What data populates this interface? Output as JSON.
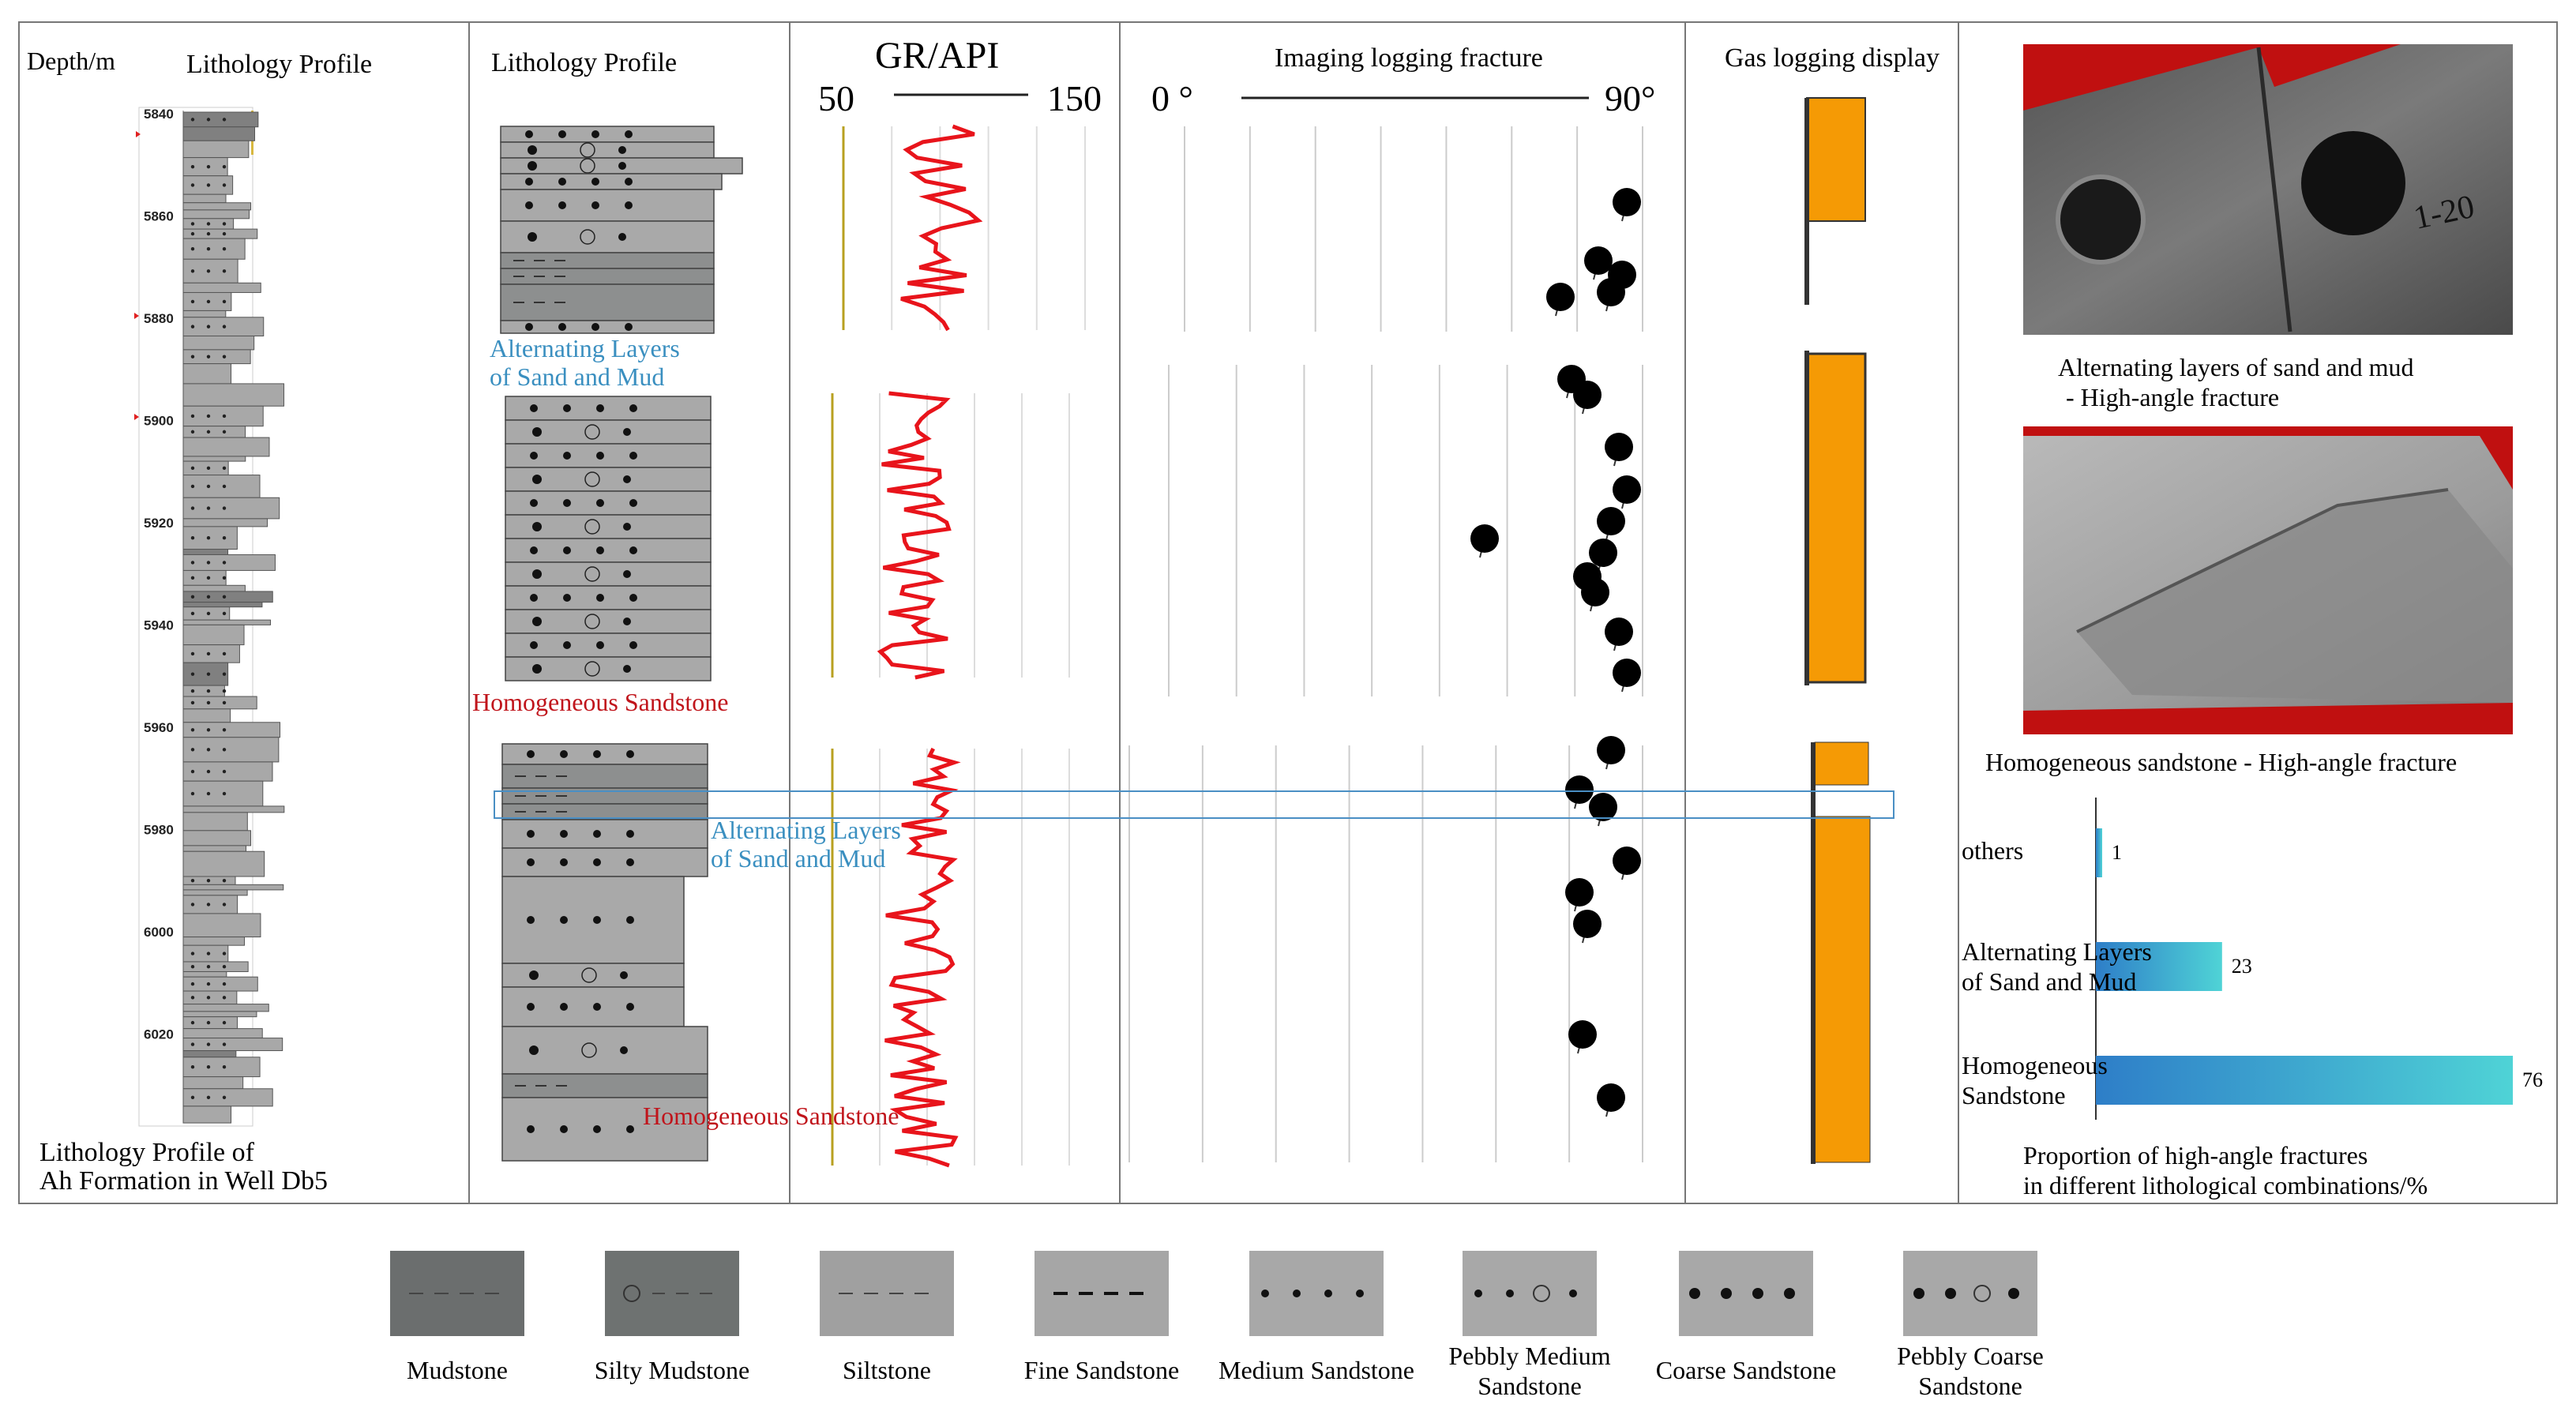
{
  "columns": {
    "depth_header": "Depth/m",
    "lith_header_1": "Lithology Profile",
    "lith_header_2": "Lithology Profile",
    "gr_header": "GR/API",
    "gr_min": "50",
    "gr_max": "150",
    "imaging_header": "Imaging logging fracture",
    "imaging_min": "0 °",
    "imaging_max": "90°",
    "gas_header": "Gas logging display"
  },
  "depth_ticks": [
    "5840",
    "5860",
    "5880",
    "5900",
    "5920",
    "5940",
    "5960",
    "5980",
    "6000",
    "6020"
  ],
  "profile_caption_1": "Lithology Profile of",
  "profile_caption_2": "Ah Formation in Well Db5",
  "segment_labels": {
    "seg1": [
      "Alternating Layers",
      "of Sand and Mud"
    ],
    "seg2": "Homogeneous Sandstone",
    "seg3": [
      "Alternating Layers",
      "of Sand and Mud"
    ],
    "seg4": "Homogeneous Sandstone"
  },
  "photos": [
    {
      "caption_1": "Alternating layers of sand and mud",
      "caption_2": "- High-angle fracture",
      "annotation": "1-20"
    },
    {
      "caption_1": "Homogeneous sandstone - High-angle fracture"
    }
  ],
  "chart_data": {
    "type": "bar",
    "orientation": "horizontal",
    "categories": [
      "others",
      "Alternating Layers of Sand and Mud",
      "Homogeneous Sandstone"
    ],
    "category_lines": [
      [
        "others"
      ],
      [
        "Alternating Layers",
        "of Sand and Mud"
      ],
      [
        "Homogeneous",
        "Sandstone"
      ]
    ],
    "values": [
      1,
      23,
      76
    ],
    "value_labels": [
      "1",
      "23",
      "76"
    ],
    "xlim": [
      0,
      76
    ],
    "title_1": "Proportion of high-angle fractures",
    "title_2": "in different lithological combinations/%",
    "colors": [
      "#2e7ec8",
      "#4fd3d6"
    ]
  },
  "legend": [
    {
      "label": [
        "Mudstone"
      ],
      "fill": "#6b6e6e",
      "pattern": "dash"
    },
    {
      "label": [
        "Silty Mudstone"
      ],
      "fill": "#6e7271",
      "pattern": "circle-dash"
    },
    {
      "label": [
        "Siltstone"
      ],
      "fill": "#a0a0a0",
      "pattern": "dash-light"
    },
    {
      "label": [
        "Fine Sandstone"
      ],
      "fill": "#a6a6a6",
      "pattern": "dash-bold"
    },
    {
      "label": [
        "Medium Sandstone"
      ],
      "fill": "#a8a8a8",
      "pattern": "dots"
    },
    {
      "label": [
        "Pebbly Medium",
        "Sandstone"
      ],
      "fill": "#a8a8a8",
      "pattern": "dots-circle"
    },
    {
      "label": [
        "Coarse Sandstone"
      ],
      "fill": "#a8a8a8",
      "pattern": "dots-big"
    },
    {
      "label": [
        "Pebbly Coarse",
        "Sandstone"
      ],
      "fill": "#a8a8a8",
      "pattern": "dots-big-circle"
    }
  ],
  "colors": {
    "gr_curve": "#e8141b",
    "gas_fill": "#f59a05",
    "label_blue": "#3a8fc0",
    "label_red": "#c0141b",
    "rock_fill": "#a9a9a9"
  }
}
